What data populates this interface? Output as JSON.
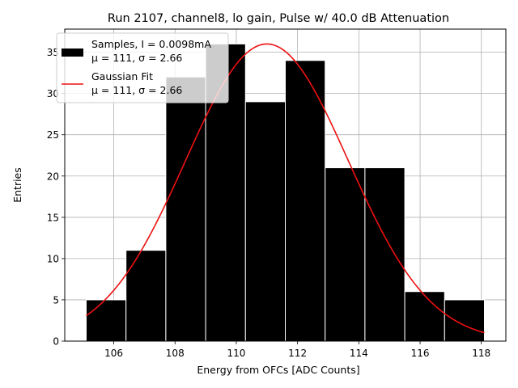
{
  "chart_data": {
    "type": "bar",
    "title": "Run 2107, channel8, lo gain, Pulse w/ 40.0 dB Attenuation",
    "xlabel": "Energy from OFCs [ADC Counts]",
    "ylabel": "Entries",
    "xlim": [
      104.4,
      118.8
    ],
    "ylim": [
      0,
      37.8
    ],
    "xticks": [
      106,
      108,
      110,
      112,
      114,
      116,
      118
    ],
    "yticks": [
      0,
      5,
      10,
      15,
      20,
      25,
      30,
      35
    ],
    "grid": true,
    "legend_position": "top-left",
    "histogram": {
      "name": "Samples, I = 0.0098mA",
      "stats": "μ = 111, σ = 2.66",
      "color": "#000000",
      "edgecolor": "#ffffff",
      "bin_edges": [
        105.1,
        106.4,
        107.7,
        109.0,
        110.3,
        111.6,
        112.9,
        114.2,
        115.5,
        116.8,
        118.1
      ],
      "counts": [
        5,
        11,
        32,
        36,
        29,
        34,
        21,
        21,
        6,
        5
      ]
    },
    "fit": {
      "name": "Gaussian Fit",
      "stats": "μ = 111, σ = 2.66",
      "color": "#ee1111",
      "amplitude": 36.0,
      "mu": 111.0,
      "sigma": 2.66,
      "x_range": [
        105.1,
        118.1
      ]
    }
  }
}
